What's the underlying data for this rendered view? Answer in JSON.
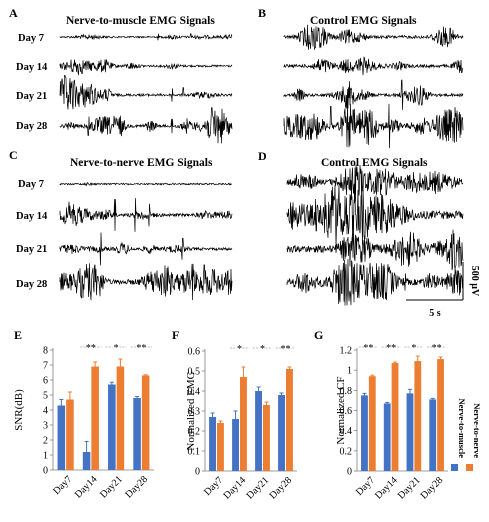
{
  "figure": {
    "panel_labels": [
      "A",
      "B",
      "C",
      "D",
      "E",
      "F",
      "G"
    ],
    "titles": {
      "A": "Nerve-to-muscle EMG  Signals",
      "B": "Control EMG Signals",
      "C": "Nerve-to-nerve EMG Signals",
      "D": "Control EMG Signals"
    },
    "day_labels": [
      "Day 7",
      "Day 14",
      "Day 21",
      "Day 28"
    ],
    "scale_bar": {
      "amplitude": "500 μV",
      "time": "5 s"
    },
    "legend": [
      "Nerve-to-muscle",
      "Nerve-to-nerve"
    ],
    "colors": {
      "nerve_to_muscle": "#4472C4",
      "nerve_to_nerve": "#ED7D31",
      "trace": "#000000"
    }
  },
  "chart_data": [
    {
      "type": "bar",
      "panel": "E",
      "ylabel": "SNR(dB)",
      "categories": [
        "Day7",
        "Day14",
        "Day21",
        "Day28"
      ],
      "ylim": [
        0,
        8
      ],
      "yticks": [
        0,
        1,
        2,
        3,
        4,
        5,
        6,
        7,
        8
      ],
      "series": [
        {
          "name": "Nerve-to-muscle",
          "values": [
            4.3,
            1.2,
            5.7,
            4.8
          ],
          "errors": [
            0.4,
            0.7,
            0.15,
            0.1
          ]
        },
        {
          "name": "Nerve-to-nerve",
          "values": [
            4.7,
            6.9,
            6.9,
            6.3
          ],
          "errors": [
            0.5,
            0.3,
            0.5,
            0.05
          ]
        }
      ],
      "significance": [
        "",
        "**",
        "*",
        "**"
      ]
    },
    {
      "type": "bar",
      "panel": "F",
      "ylabel": "Normalized EMG",
      "categories": [
        "Day7",
        "Day14",
        "Day21",
        "Day28"
      ],
      "ylim": [
        0,
        0.6
      ],
      "yticks": [
        0,
        0.1,
        0.2,
        0.3,
        0.4,
        0.5,
        0.6
      ],
      "series": [
        {
          "name": "Nerve-to-muscle",
          "values": [
            0.27,
            0.26,
            0.4,
            0.38
          ],
          "errors": [
            0.02,
            0.04,
            0.02,
            0.01
          ]
        },
        {
          "name": "Nerve-to-nerve",
          "values": [
            0.24,
            0.47,
            0.33,
            0.51
          ],
          "errors": [
            0.01,
            0.05,
            0.015,
            0.01
          ]
        }
      ],
      "significance": [
        "",
        "*",
        "*",
        "**"
      ]
    },
    {
      "type": "bar",
      "panel": "G",
      "ylabel": "Normalized CF",
      "categories": [
        "Day7",
        "Day14",
        "Day21",
        "Day28"
      ],
      "ylim": [
        0,
        1.2
      ],
      "yticks": [
        0,
        0.2,
        0.4,
        0.6,
        0.8,
        1,
        1.2
      ],
      "series": [
        {
          "name": "Nerve-to-muscle",
          "values": [
            0.75,
            0.67,
            0.77,
            0.71
          ],
          "errors": [
            0.02,
            0.01,
            0.04,
            0.01
          ]
        },
        {
          "name": "Nerve-to-nerve",
          "values": [
            0.94,
            1.07,
            1.09,
            1.11
          ],
          "errors": [
            0.01,
            0.01,
            0.05,
            0.02
          ]
        }
      ],
      "significance": [
        "**",
        "**",
        "*",
        "**"
      ]
    }
  ]
}
